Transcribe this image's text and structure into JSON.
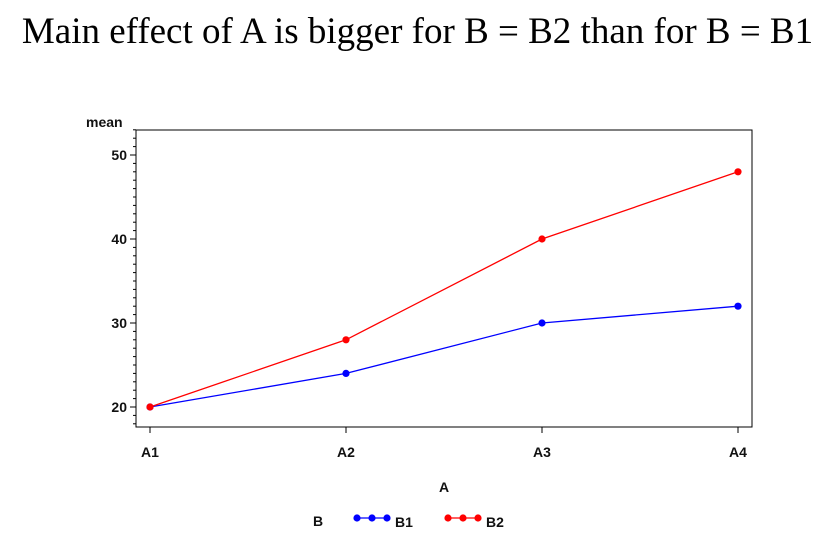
{
  "title": "Main effect of A is bigger for B = B2 than for B = B1",
  "chart_data": {
    "type": "line",
    "ylabel": "mean",
    "xlabel": "A",
    "categories": [
      "A1",
      "A2",
      "A3",
      "A4"
    ],
    "ylim": [
      18,
      53
    ],
    "yticks": [
      20,
      30,
      40,
      50
    ],
    "grid": false,
    "legend": {
      "title": "B",
      "placement": "bottom"
    },
    "series": [
      {
        "name": "B1",
        "color": "#0000ff",
        "values": [
          20,
          24,
          30,
          32
        ]
      },
      {
        "name": "B2",
        "color": "#ff0000",
        "values": [
          20,
          28,
          40,
          48
        ]
      }
    ]
  }
}
